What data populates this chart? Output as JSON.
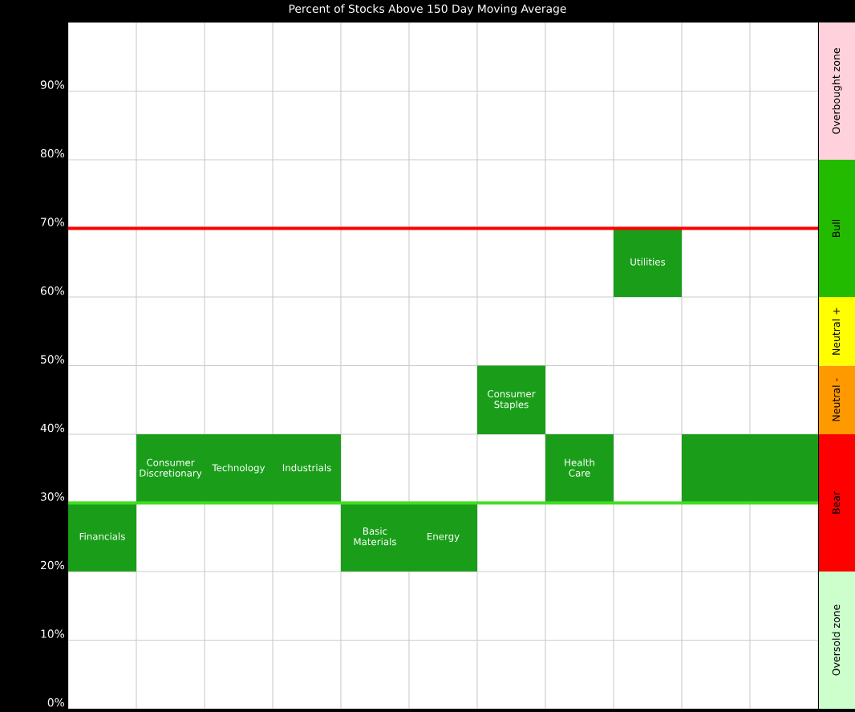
{
  "chart_data": [
    {
      "type": "bar",
      "title": "Percent of Stocks Above 150 Day Moving Average",
      "categories": [
        "Financials",
        "Consumer Discretionary",
        "Technology",
        "Industrials",
        "Basic Materials",
        "Energy",
        "Consumer Staples",
        "Health Care",
        "Utilities",
        null,
        null
      ],
      "base": [
        20,
        30,
        30,
        30,
        20,
        20,
        40,
        30,
        60,
        30,
        30
      ],
      "values": [
        10,
        10,
        10,
        10,
        10,
        10,
        10,
        10,
        10,
        10,
        10
      ],
      "color": "#1a9e1a",
      "ylim": [
        0,
        100
      ],
      "yticks": [
        {
          "value": 0,
          "label": "0%"
        },
        {
          "value": 10,
          "label": "10%"
        },
        {
          "value": 20,
          "label": "20%"
        },
        {
          "value": 30,
          "label": "30%"
        },
        {
          "value": 40,
          "label": "40%"
        },
        {
          "value": 50,
          "label": "50%"
        },
        {
          "value": 60,
          "label": "60%"
        },
        {
          "value": 70,
          "label": "70%"
        },
        {
          "value": 80,
          "label": "80%"
        },
        {
          "value": 90,
          "label": "90%"
        },
        {
          "value": 100,
          "label": null
        }
      ],
      "grid": true,
      "tick_labels": "y",
      "ref_lines": [
        {
          "axis": "y",
          "value": 70,
          "color": "#ff0000",
          "line_style": "solid"
        },
        {
          "axis": "y",
          "value": 30,
          "color": "#44dd22",
          "line_style": "solid"
        }
      ]
    },
    {
      "type": "bar",
      "stacked": true,
      "categories": [
        null
      ],
      "ylim": [
        0,
        100
      ],
      "tick_labels": false,
      "series": [
        {
          "name": "Oversold zone",
          "color": "#ccffcc",
          "values": [
            20
          ]
        },
        {
          "name": "Bear",
          "color": "#ff0000",
          "values": [
            20
          ]
        },
        {
          "name": "Neutral -",
          "color": "#ff9900",
          "values": [
            10
          ]
        },
        {
          "name": "Neutral +",
          "color": "#ffff00",
          "values": [
            10
          ]
        },
        {
          "name": "Bull",
          "color": "#22bb00",
          "values": [
            20
          ]
        },
        {
          "name": "Overbought zone",
          "color": "#ffd1dc",
          "values": [
            20
          ]
        }
      ]
    }
  ]
}
